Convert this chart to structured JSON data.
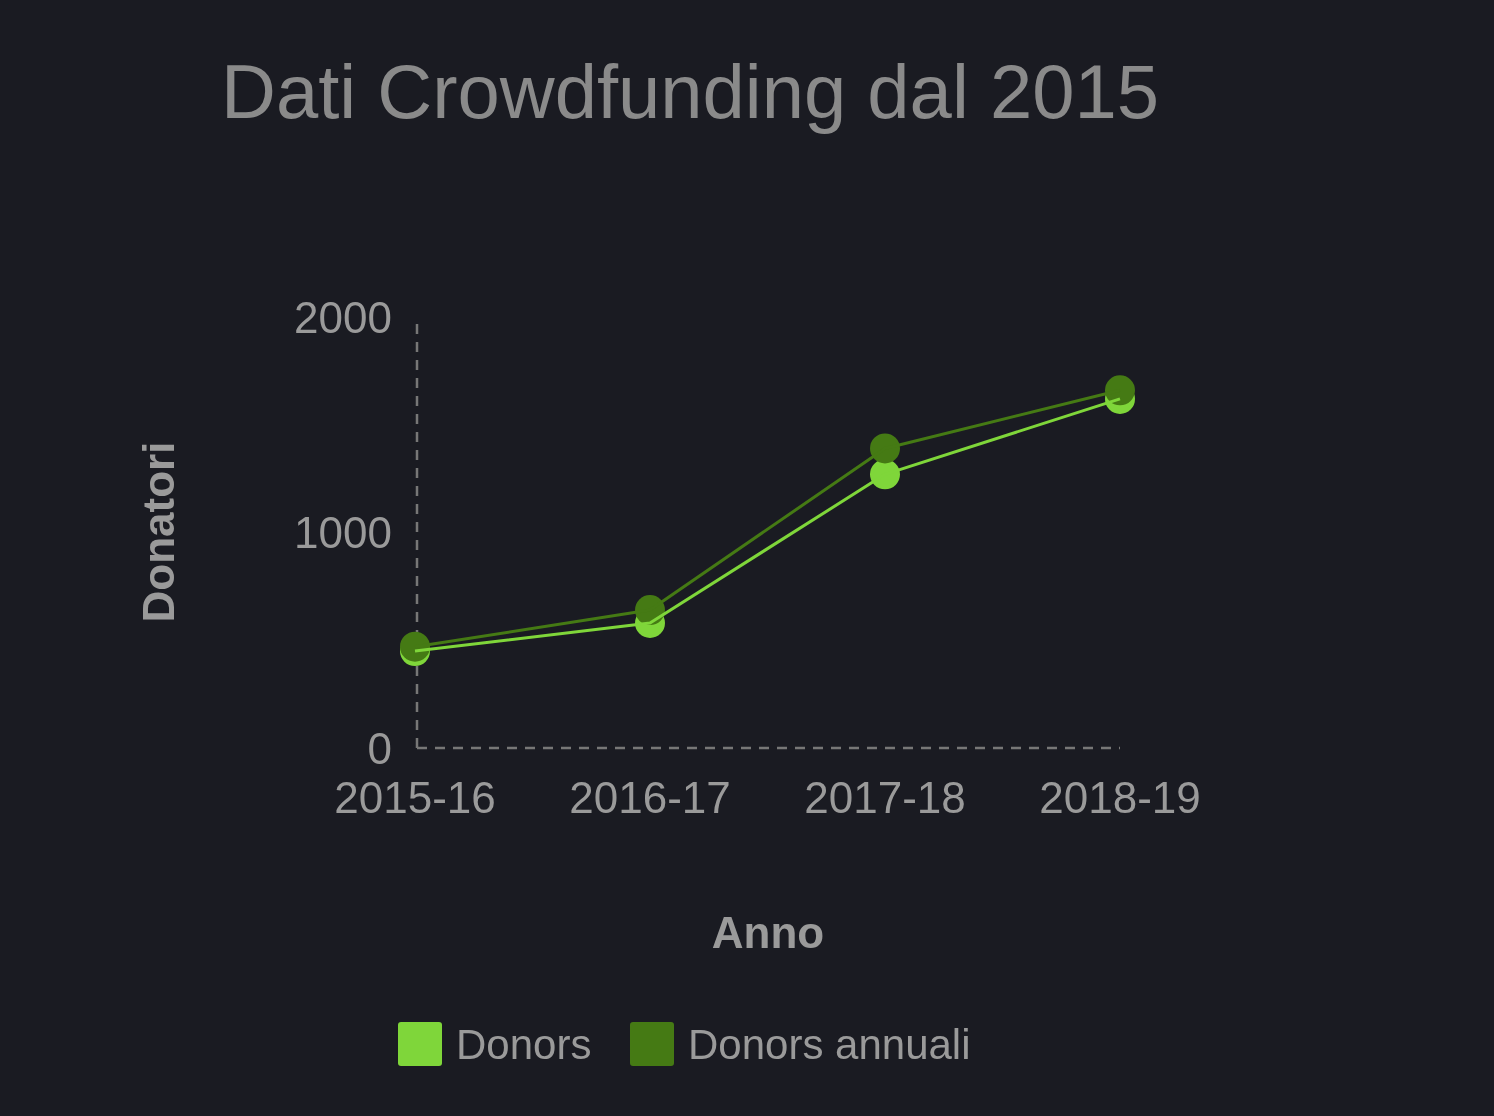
{
  "chart_data": {
    "type": "line",
    "title": "Dati Crowdfunding dal 2015",
    "xlabel": "Anno",
    "ylabel": "Donatori",
    "categories": [
      "2015-16",
      "2016-17",
      "2017-18",
      "2018-19"
    ],
    "series": [
      {
        "name": "Donors",
        "color": "#7fd63a",
        "values": [
          450,
          580,
          1270,
          1620
        ]
      },
      {
        "name": "Donors annuali",
        "color": "#457a14",
        "values": [
          470,
          640,
          1390,
          1660
        ]
      }
    ],
    "ylim": [
      0,
      2000
    ],
    "yticks": [
      0,
      1000,
      2000
    ],
    "grid": false,
    "legend": "bottom",
    "marker": "circle",
    "line_style": "solid"
  }
}
